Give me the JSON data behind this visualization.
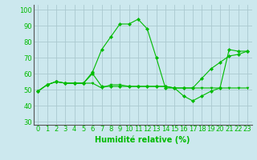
{
  "xlabel": "Humidité relative (%)",
  "background_color": "#cce8ee",
  "grid_color": "#aac8d0",
  "line_color": "#00bb00",
  "axis_color": "#555555",
  "xlim": [
    -0.5,
    23.5
  ],
  "ylim": [
    28,
    103
  ],
  "yticks": [
    30,
    40,
    50,
    60,
    70,
    80,
    90,
    100
  ],
  "xticks": [
    0,
    1,
    2,
    3,
    4,
    5,
    6,
    7,
    8,
    9,
    10,
    11,
    12,
    13,
    14,
    15,
    16,
    17,
    18,
    19,
    20,
    21,
    22,
    23
  ],
  "series1_x": [
    0,
    1,
    2,
    3,
    4,
    5,
    6,
    7,
    8,
    9,
    10,
    11,
    12,
    13,
    14,
    15,
    16,
    17,
    18,
    19,
    20,
    21,
    22,
    23
  ],
  "series1_y": [
    49,
    53,
    55,
    54,
    54,
    54,
    54,
    51,
    53,
    53,
    52,
    52,
    52,
    52,
    52,
    51,
    51,
    51,
    51,
    51,
    51,
    51,
    51,
    51
  ],
  "series2_x": [
    0,
    1,
    2,
    3,
    4,
    5,
    6,
    7,
    8,
    9,
    10,
    11,
    12,
    13,
    14,
    15,
    16,
    17,
    18,
    19,
    20,
    21,
    22,
    23
  ],
  "series2_y": [
    49,
    53,
    55,
    54,
    54,
    54,
    61,
    75,
    83,
    91,
    91,
    94,
    88,
    70,
    51,
    51,
    46,
    43,
    46,
    49,
    51,
    75,
    74,
    74
  ],
  "series3_x": [
    0,
    1,
    2,
    3,
    4,
    5,
    6,
    7,
    8,
    9,
    10,
    11,
    12,
    13,
    14,
    15,
    16,
    17,
    18,
    19,
    20,
    21,
    22,
    23
  ],
  "series3_y": [
    49,
    53,
    55,
    54,
    54,
    54,
    60,
    52,
    52,
    52,
    52,
    52,
    52,
    52,
    52,
    51,
    51,
    51,
    57,
    63,
    67,
    71,
    72,
    74
  ],
  "xlabel_fontsize": 7,
  "tick_fontsize": 6
}
